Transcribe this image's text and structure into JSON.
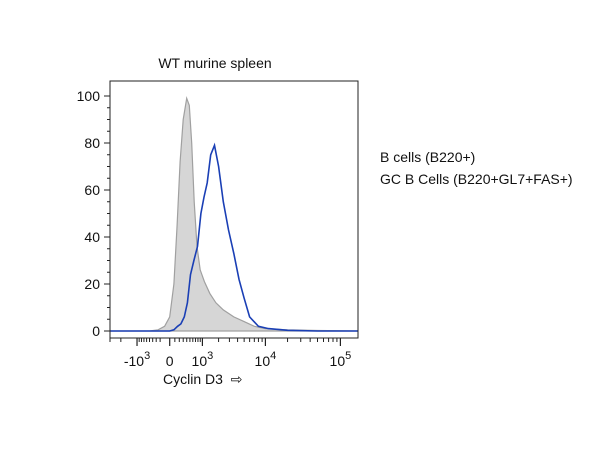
{
  "chart_data": {
    "type": "area",
    "title": "WT murine spleen",
    "xlabel": "Cyclin D3",
    "xlabel_arrow": "⇨",
    "ylabel": "",
    "x_scale": "biexponential",
    "xlim": [
      -3000,
      170000
    ],
    "ylim": [
      0,
      100
    ],
    "y_ticks": [
      "0",
      "20",
      "40",
      "60",
      "80",
      "100"
    ],
    "y_tick_values": [
      0,
      20,
      40,
      60,
      80,
      100
    ],
    "x_ticks": [
      {
        "base": "-10",
        "exp": "3",
        "value": -1000
      },
      {
        "base": "0",
        "exp": "",
        "value": 0
      },
      {
        "base": "10",
        "exp": "3",
        "value": 1000
      },
      {
        "base": "10",
        "exp": "4",
        "value": 10000
      },
      {
        "base": "10",
        "exp": "5",
        "value": 100000
      }
    ],
    "grid": false,
    "legend_position": "right",
    "series": [
      {
        "name": "B cells  (B220+)",
        "color": "#a0a0a0",
        "fill": "#d6d6d6",
        "filled": true,
        "x": [
          -3000,
          -500,
          -250,
          -100,
          0,
          80,
          150,
          220,
          300,
          400,
          480,
          560,
          650,
          760,
          900,
          1100,
          1400,
          1800,
          2400,
          3500,
          5000,
          7000,
          10000,
          20000,
          50000,
          170000
        ],
        "y": [
          0,
          0,
          0.5,
          2,
          6,
          20,
          45,
          72,
          90,
          99,
          96,
          80,
          55,
          36,
          26,
          21,
          16,
          12,
          9,
          6,
          4,
          2,
          1,
          0.5,
          0.2,
          0
        ]
      },
      {
        "name": "GC B Cells (B220+GL7+FAS+)",
        "color": "#1a3fb5",
        "filled": false,
        "x": [
          -3000,
          0,
          80,
          160,
          240,
          330,
          420,
          520,
          640,
          780,
          930,
          1080,
          1250,
          1450,
          1700,
          2000,
          2400,
          2900,
          3500,
          4200,
          5000,
          6000,
          8000,
          11000,
          20000,
          50000,
          170000
        ],
        "y": [
          0,
          0,
          0.5,
          2,
          3,
          6,
          12,
          24,
          30,
          36,
          50,
          57,
          63,
          75,
          79,
          70,
          55,
          43,
          33,
          22,
          14,
          6,
          2,
          1,
          0.3,
          0,
          0
        ]
      }
    ]
  }
}
